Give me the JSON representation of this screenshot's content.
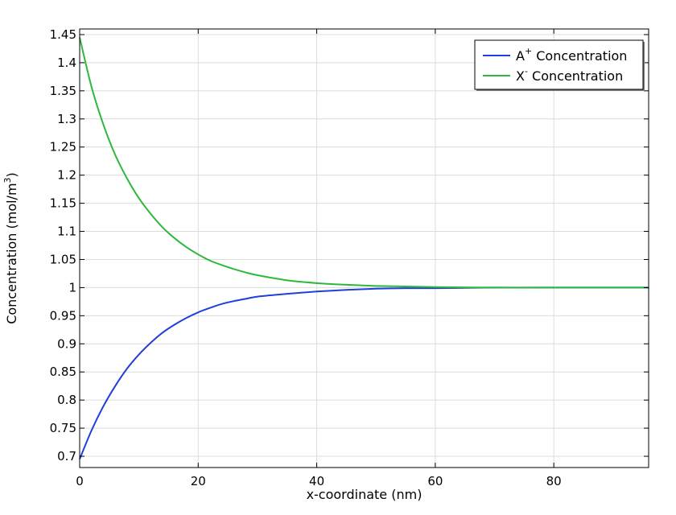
{
  "chart_data": {
    "type": "line",
    "xlabel": "x-coordinate (nm)",
    "ylabel": "Concentration (mol/m",
    "ylabel_sup": "3",
    "ylabel_end": ")",
    "xlim": [
      0,
      96
    ],
    "ylim": [
      0.68,
      1.46
    ],
    "xticks": [
      0,
      20,
      40,
      60,
      80
    ],
    "xtick_labels": [
      "0",
      "20",
      "40",
      "60",
      "80"
    ],
    "yticks": [
      0.7,
      0.75,
      0.8,
      0.85,
      0.9,
      0.95,
      1,
      1.05,
      1.1,
      1.15,
      1.2,
      1.25,
      1.3,
      1.35,
      1.4,
      1.45
    ],
    "ytick_labels": [
      "0.7",
      "0.75",
      "0.8",
      "0.85",
      "0.9",
      "0.95",
      "1",
      "1.05",
      "1.1",
      "1.15",
      "1.2",
      "1.25",
      "1.3",
      "1.35",
      "1.4",
      "1.45"
    ],
    "grid": true,
    "legend_position": "top-right",
    "series": [
      {
        "name_base": "A",
        "name_sup": "+",
        "name_rest": " Concentration",
        "color": "#1f3fdc",
        "x": [
          0,
          2,
          4,
          6,
          8,
          10,
          12,
          14,
          16,
          18,
          20,
          22,
          24,
          26,
          28,
          30,
          35,
          40,
          45,
          50,
          55,
          60,
          70,
          80,
          96
        ],
        "y": [
          0.695,
          0.746,
          0.789,
          0.825,
          0.856,
          0.881,
          0.902,
          0.92,
          0.934,
          0.946,
          0.956,
          0.964,
          0.971,
          0.976,
          0.98,
          0.984,
          0.989,
          0.993,
          0.996,
          0.998,
          0.999,
          0.999,
          1.0,
          1.0,
          1.0
        ]
      },
      {
        "name_base": "X",
        "name_sup": "-",
        "name_rest": " Concentration",
        "color": "#2db83d",
        "x": [
          0,
          2,
          4,
          6,
          8,
          10,
          12,
          14,
          16,
          18,
          20,
          22,
          24,
          26,
          28,
          30,
          35,
          40,
          45,
          50,
          55,
          60,
          70,
          80,
          96
        ],
        "y": [
          1.445,
          1.357,
          1.29,
          1.236,
          1.194,
          1.159,
          1.131,
          1.107,
          1.088,
          1.072,
          1.059,
          1.048,
          1.04,
          1.033,
          1.027,
          1.022,
          1.013,
          1.008,
          1.005,
          1.003,
          1.002,
          1.001,
          1.0,
          1.0,
          1.0
        ]
      }
    ]
  }
}
